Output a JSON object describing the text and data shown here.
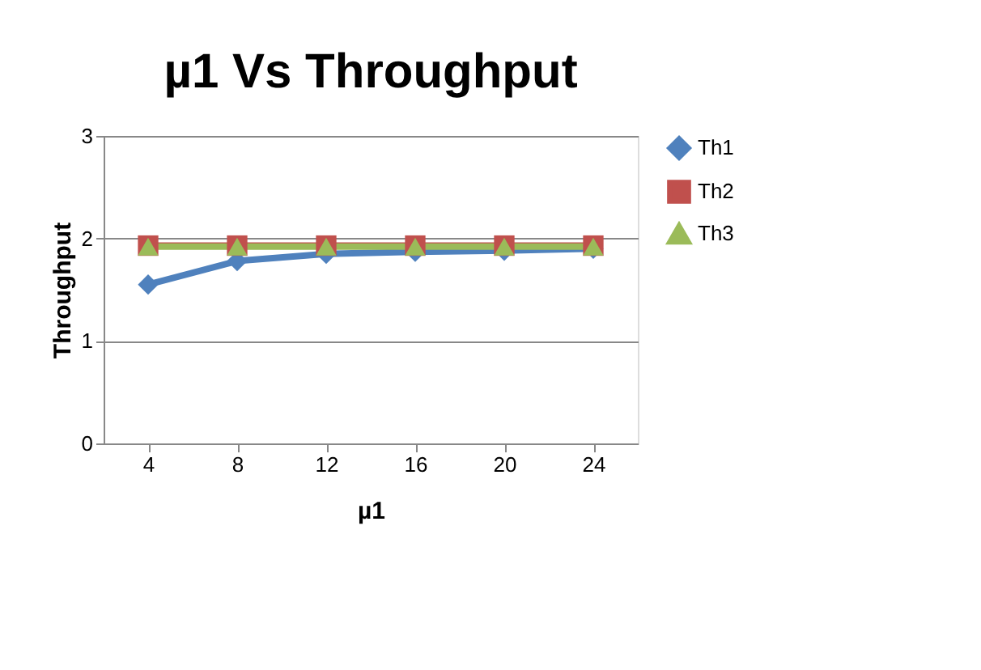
{
  "chart_data": {
    "type": "line",
    "title": "µ1 Vs Throughput",
    "xlabel": "µ1",
    "ylabel": "Throughput",
    "categories": [
      "4",
      "8",
      "12",
      "16",
      "20",
      "24"
    ],
    "series": [
      {
        "name": "Th1",
        "color": "#4f81bd",
        "marker": "diamond",
        "values": [
          1.55,
          1.78,
          1.85,
          1.87,
          1.88,
          1.9
        ]
      },
      {
        "name": "Th2",
        "color": "#c0504d",
        "marker": "square",
        "values": [
          1.93,
          1.93,
          1.93,
          1.93,
          1.93,
          1.93
        ]
      },
      {
        "name": "Th3",
        "color": "#9bbb59",
        "marker": "triangle",
        "values": [
          1.92,
          1.92,
          1.92,
          1.92,
          1.92,
          1.92
        ]
      }
    ],
    "ylim": [
      0,
      3
    ],
    "yticks": [
      0,
      1,
      2,
      3
    ],
    "grid": "y",
    "legend": "right"
  }
}
